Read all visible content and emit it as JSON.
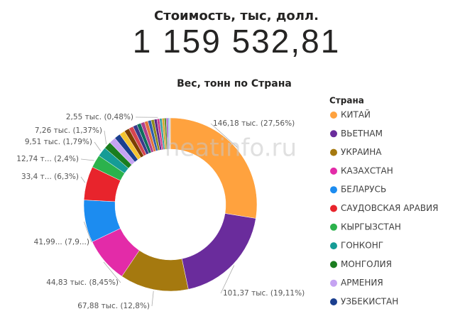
{
  "card": {
    "title": "Стоимость, тыс, долл.",
    "value": "1 159 532,81"
  },
  "watermark": "heatinfo.ru",
  "chart_data": {
    "type": "donut",
    "title": "Вес, тонн по Страна",
    "legend_title": "Страна",
    "categories": [
      "КИТАЙ",
      "ВЬЕТНАМ",
      "УКРАИНА",
      "КАЗАХСТАН",
      "БЕЛАРУСЬ",
      "САУДОВСКАЯ АРАВИЯ",
      "КЫРГЫЗСТАН",
      "ГОНКОНГ",
      "МОНГОЛИЯ",
      "АРМЕНИЯ",
      "УЗБЕКИСТАН",
      null,
      null,
      null,
      null,
      null,
      null,
      null,
      null,
      null,
      null,
      null,
      null,
      null,
      null,
      null,
      null,
      null
    ],
    "values": [
      146180,
      101370,
      67880,
      44830,
      41990,
      33400,
      12740,
      9510,
      7260,
      6500,
      6000,
      5500,
      5000,
      4500,
      4200,
      4000,
      3800,
      3500,
      3200,
      3000,
      2800,
      2550,
      2400,
      2200,
      2000,
      1800,
      1290,
      1000
    ],
    "value_labels": [
      "146,18 тыс. (27,56%)",
      "101,37 тыс. (19,11%)",
      "67,88 тыс. (12,8%)",
      "44,83 тыс. (8,45%)",
      "41,99... (7,9...)",
      "33,4 т... (6,3%)",
      "12,74 т... (2,4%)",
      "9,51 тыс. (1,79%)",
      "7,26 тыс. (1,37%)",
      null,
      null,
      null,
      null,
      null,
      null,
      null,
      null,
      null,
      null,
      null,
      null,
      "2,55 тыс. (0,48%)",
      null,
      null,
      null,
      null,
      null,
      null
    ],
    "colors": [
      "#FFA23E",
      "#6A2C9C",
      "#A5790F",
      "#E32BA8",
      "#1C8CF0",
      "#E8242C",
      "#2BB24C",
      "#159C96",
      "#1A7D1F",
      "#C5A3F2",
      "#1B3F8F",
      "#F4C430",
      "#7B3F00",
      "#D64550",
      "#3A3A8C",
      "#0E6E5C",
      "#B0408F",
      "#E2733D",
      "#2E5EAA",
      "#8C8C1E",
      "#5B2A86",
      "#CF3A8C",
      "#3CA0A0",
      "#D9A22A",
      "#5D8C2F",
      "#9E5ACD",
      "#7FB8E0",
      "#C0C0C0"
    ]
  }
}
